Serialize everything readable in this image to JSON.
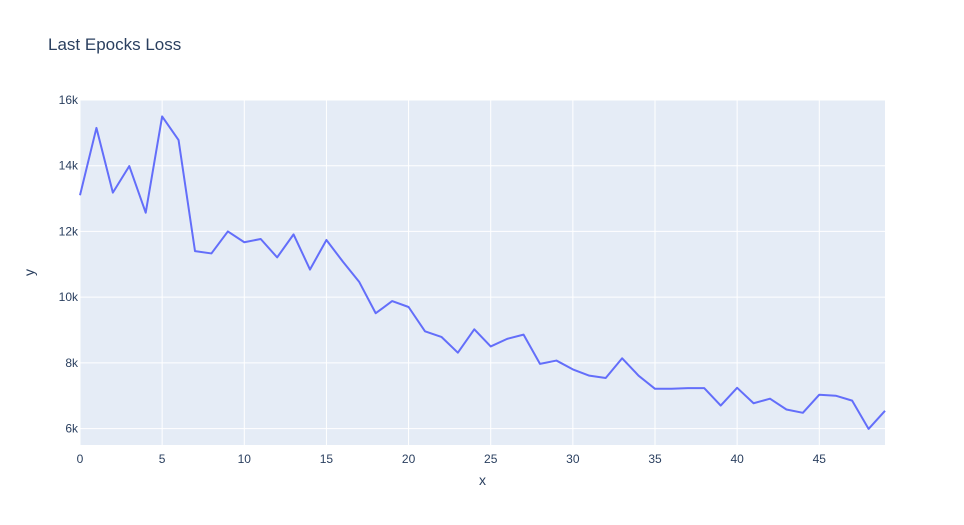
{
  "chart_data": {
    "type": "line",
    "title": "Last Epocks Loss",
    "xlabel": "x",
    "ylabel": "y",
    "xlim": [
      0,
      49
    ],
    "ylim": [
      5500,
      16000
    ],
    "x_ticks": [
      0,
      5,
      10,
      15,
      20,
      25,
      30,
      35,
      40,
      45
    ],
    "x_tick_labels": [
      "0",
      "5",
      "10",
      "15",
      "20",
      "25",
      "30",
      "35",
      "40",
      "45"
    ],
    "y_ticks": [
      6000,
      8000,
      10000,
      12000,
      14000,
      16000
    ],
    "y_tick_labels": [
      "6k",
      "8k",
      "10k",
      "12k",
      "14k",
      "16k"
    ],
    "grid": true,
    "legend": "none",
    "colors": {
      "line": "#636efa",
      "plot_bg": "#e5ecf6",
      "grid": "#ffffff",
      "text": "#2a3f5f"
    },
    "series": [
      {
        "x": [
          0,
          1,
          2,
          3,
          4,
          5,
          6,
          7,
          8,
          9,
          10,
          11,
          12,
          13,
          14,
          15,
          16,
          17,
          18,
          19,
          20,
          21,
          22,
          23,
          24,
          25,
          26,
          27,
          28,
          29,
          30,
          31,
          32,
          33,
          34,
          35,
          36,
          37,
          38,
          39,
          40,
          41,
          42,
          43,
          44,
          45,
          46,
          47,
          48,
          49
        ],
        "values": [
          13100,
          15150,
          13180,
          13990,
          12570,
          15500,
          14780,
          11400,
          11330,
          12000,
          11670,
          11770,
          11210,
          11910,
          10840,
          11740,
          11080,
          10460,
          9510,
          9880,
          9700,
          8960,
          8790,
          8310,
          9020,
          8500,
          8730,
          8860,
          7970,
          8070,
          7800,
          7610,
          7540,
          8140,
          7610,
          7210,
          7210,
          7230,
          7230,
          6700,
          7240,
          6770,
          6910,
          6580,
          6480,
          7030,
          7000,
          6850,
          5990,
          6540
        ]
      }
    ]
  }
}
